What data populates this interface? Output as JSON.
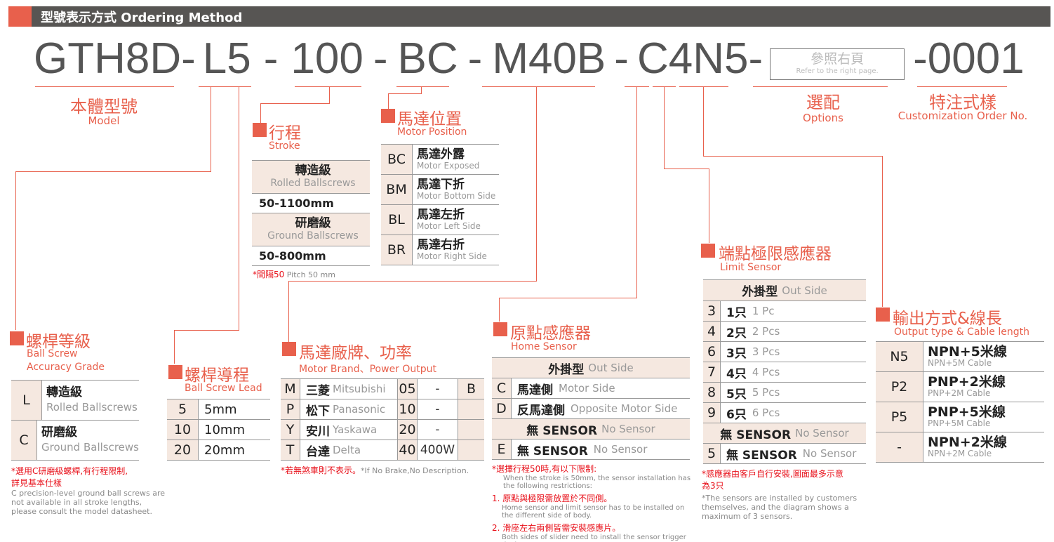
{
  "header": {
    "title_zh": "型號表示方式",
    "title_en": "Ordering Method"
  },
  "code": {
    "model": "GTH8D-",
    "grade": "L",
    "lead": "5",
    "dash": "-",
    "stroke": "100",
    "motor_position": "BC",
    "motor": "M40B",
    "home": "C",
    "limit": "4",
    "output": "N5",
    "dash_after": "-",
    "options_zh": "參照右頁",
    "options_en": "Refer to the right page.",
    "suffix": "-0001"
  },
  "labels": {
    "model_zh": "本體型號",
    "model_en": "Model",
    "options_zh": "選配",
    "options_en": "Options",
    "custom_zh": "特注式樣",
    "custom_en": "Customization Order No."
  },
  "stroke": {
    "title_zh": "行程",
    "title_en": "Stroke",
    "rolled_zh": "轉造級",
    "rolled_en": "Rolled Ballscrews",
    "rolled_range": "50-1100mm",
    "ground_zh": "研磨級",
    "ground_en": "Ground Ballscrews",
    "ground_range": "50-800mm",
    "note_zh": "*間隔50",
    "note_en": "Pitch 50 mm"
  },
  "motor_position": {
    "title_zh": "馬達位置",
    "title_en": "Motor Position",
    "rows": [
      {
        "code": "BC",
        "zh": "馬達外露",
        "en": "Motor Exposed"
      },
      {
        "code": "BM",
        "zh": "馬達下折",
        "en": "Motor Bottom Side"
      },
      {
        "code": "BL",
        "zh": "馬達左折",
        "en": "Motor Left Side"
      },
      {
        "code": "BR",
        "zh": "馬達右折",
        "en": "Motor Right Side"
      }
    ]
  },
  "grade": {
    "title_zh": "螺桿等級",
    "title_en1": "Ball Screw",
    "title_en2": "Accuracy Grade",
    "rows": [
      {
        "code": "L",
        "zh": "轉造級",
        "en": "Rolled Ballscrews"
      },
      {
        "code": "C",
        "zh": "研磨級",
        "en": "Ground Ballscrews"
      }
    ],
    "note_zh1": "*選用C研磨級螺桿,有行程限制,",
    "note_zh2": "詳見基本仕樣",
    "note_en": "C precision-level ground ball screws are not available in all stroke lengths, please consult the model datasheet."
  },
  "lead": {
    "title_zh": "螺桿導程",
    "title_en": "Ball Screw Lead",
    "rows": [
      {
        "code": "5",
        "value": "5mm"
      },
      {
        "code": "10",
        "value": "10mm"
      },
      {
        "code": "20",
        "value": "20mm"
      }
    ]
  },
  "motor_brand": {
    "title_zh": "馬達廠牌、功率",
    "title_en": "Motor Brand、Power Output",
    "rows": [
      {
        "code": "M",
        "zh": "三菱",
        "en": "Mitsubishi",
        "pcode": "05",
        "power": "-",
        "brake": "B"
      },
      {
        "code": "P",
        "zh": "松下",
        "en": "Panasonic",
        "pcode": "10",
        "power": "-",
        "brake": ""
      },
      {
        "code": "Y",
        "zh": "安川",
        "en": "Yaskawa",
        "pcode": "20",
        "power": "-",
        "brake": ""
      },
      {
        "code": "T",
        "zh": "台達",
        "en": "Delta",
        "pcode": "40",
        "power": "400W",
        "brake": ""
      }
    ],
    "note_zh": "*若無煞車則不表示。",
    "note_en": "*If No Brake,No Description."
  },
  "home_sensor": {
    "title_zh": "原點感應器",
    "title_en": "Home Sensor",
    "header_zh": "外掛型",
    "header_en": "Out Side",
    "rows": [
      {
        "code": "C",
        "zh": "馬達側",
        "en": "Motor Side"
      },
      {
        "code": "D",
        "zh": "反馬達側",
        "en": "Opposite Motor Side"
      }
    ],
    "none_header_zh": "無 SENSOR",
    "none_header_en": "No Sensor",
    "none_code": "E",
    "none_zh": "無  SENSOR",
    "none_en": "No Sensor",
    "note_zh": "*選擇行程50時,有以下限制:",
    "note_en": "When the stroke is 50mm, the sensor installation has the following restrictions:",
    "note1_zh": "1. 原點與極限需放置於不同側。",
    "note1_en": "Home sensor and limit sensor has to be installed on the different side of body.",
    "note2_zh": "2. 滑座左右兩側皆需安裝感應片。",
    "note2_en": "Both sides of slider need to install the sensor trigger device."
  },
  "limit_sensor": {
    "title_zh": "端點極限感應器",
    "title_en": "Limit Sensor",
    "header_zh": "外掛型",
    "header_en": "Out Side",
    "rows": [
      {
        "code": "3",
        "zh": "1只",
        "en": "1 Pc"
      },
      {
        "code": "4",
        "zh": "2只",
        "en": "2 Pcs"
      },
      {
        "code": "6",
        "zh": "3只",
        "en": "3 Pcs"
      },
      {
        "code": "7",
        "zh": "4只",
        "en": "4 Pcs"
      },
      {
        "code": "8",
        "zh": "5只",
        "en": "5 Pcs"
      },
      {
        "code": "9",
        "zh": "6只",
        "en": "6 Pcs"
      }
    ],
    "none_header_zh": "無 SENSOR",
    "none_header_en": "No Sensor",
    "none_code": "5",
    "none_zh": "無 SENSOR",
    "none_en": "No Sensor",
    "note_zh1": "*感應器由客戶自行安裝,圖面最多示意",
    "note_zh2": "為3只",
    "note_en": "*The sensors are installed by customers themselves, and the diagram shows a maximum of 3 sensors."
  },
  "output": {
    "title_zh": "輸出方式&線長",
    "title_en": "Output type & Cable length",
    "rows": [
      {
        "code": "N5",
        "zh": "NPN+5米線",
        "en": "NPN+5M Cable"
      },
      {
        "code": "P2",
        "zh": "PNP+2米線",
        "en": "PNP+2M Cable"
      },
      {
        "code": "P5",
        "zh": "PNP+5米線",
        "en": "PNP+5M Cable"
      },
      {
        "code": "-",
        "zh": "NPN+2米線",
        "en": "NPN+2M Cable"
      }
    ]
  },
  "colors": {
    "accent": "#e8604c",
    "header_bar": "#575553",
    "cell_bg": "#f5e8e0",
    "note_red": "#e8101a"
  }
}
